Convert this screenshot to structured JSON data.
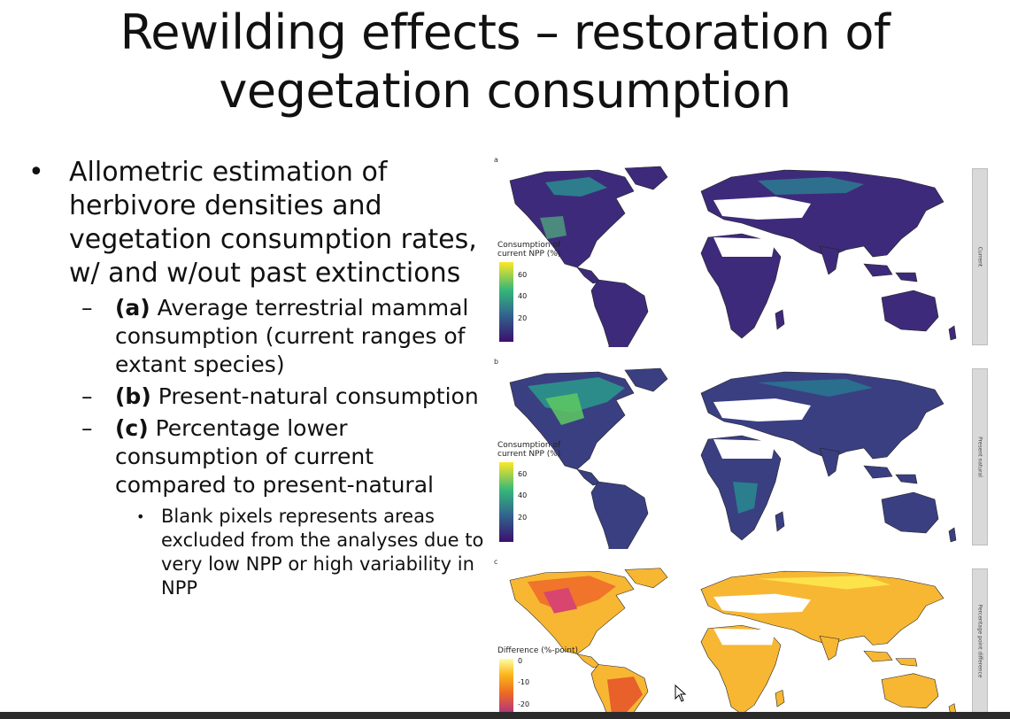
{
  "slide": {
    "title_line1": "Rewilding effects – restoration of",
    "title_line2": "vegetation consumption",
    "bullet_main": "Allometric estimation of herbivore densities and vegetation consumption rates, w/ and w/out past extinctions",
    "sub_a_label": "(a)",
    "sub_a_text": " Average terrestrial mammal consumption (current ranges of extant species)",
    "sub_b_label": "(b)",
    "sub_b_text": " Present-natural consumption",
    "sub_c_label": "(c)",
    "sub_c_text": " Percentage lower consumption of current compared to present-natural",
    "sub_c_note": "Blank pixels represents areas excluded from the analyses due to very low NPP or high variability in NPP"
  },
  "figure": {
    "panel_a": {
      "letter": "a",
      "facet_label": "Current",
      "legend_title_1": "Consumption of",
      "legend_title_2": "current NPP (%)",
      "ticks": [
        "60",
        "40",
        "20"
      ]
    },
    "panel_b": {
      "letter": "b",
      "facet_label": "Present natural",
      "legend_title_1": "Consumption of",
      "legend_title_2": "current NPP (%)",
      "ticks": [
        "60",
        "40",
        "20"
      ]
    },
    "panel_c": {
      "letter": "c",
      "facet_label": "Percentage point difference",
      "legend_title_1": "Difference (%-point)",
      "ticks": [
        "0",
        "-10",
        "-20"
      ]
    }
  },
  "colors": {
    "viridis_dark": "#3b0f6f",
    "viridis_mid": "#2a788e",
    "viridis_light": "#fde725",
    "inferno_light": "#fcd225",
    "inferno_mid": "#f57d15",
    "inferno_dark": "#b5367a"
  }
}
